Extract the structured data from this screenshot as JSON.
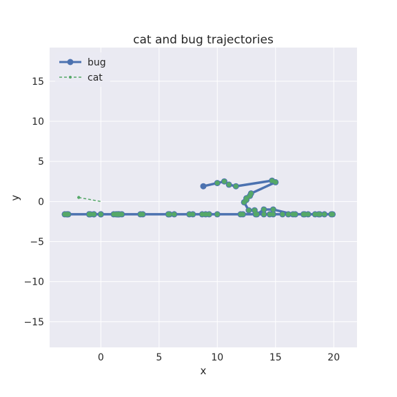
{
  "chart_data": {
    "type": "line",
    "title": "cat and bug trajectories",
    "xlabel": "x",
    "ylabel": "y",
    "xlim": [
      -4.4,
      22.0
    ],
    "ylim": [
      -18.2,
      19.2
    ],
    "xticks": [
      0,
      5,
      10,
      15,
      20
    ],
    "yticks": [
      -15,
      -10,
      -5,
      0,
      5,
      10,
      15
    ],
    "grid": true,
    "legend_position": "top-left",
    "colors": {
      "bug": "#4c72b0",
      "cat": "#55a868",
      "plot_bg": "#eaeaf2",
      "grid": "#ffffff"
    },
    "series": [
      {
        "name": "bug",
        "style": "solid line with circle markers",
        "x": [
          8.8,
          10.0,
          10.6,
          11.0,
          11.6,
          14.7,
          15.0,
          12.9,
          12.8,
          12.5,
          12.5,
          12.3,
          12.7,
          13.2,
          13.4,
          14.0,
          14.8,
          16.5,
          17.4,
          17.8,
          18.7,
          18.8,
          19.8,
          19.9,
          19.2,
          18.4,
          17.5,
          16.7,
          16.1,
          15.6,
          14.8,
          14.5,
          14.0,
          13.3,
          12.2,
          12.0,
          10.0,
          9.3,
          9.0,
          8.7,
          7.9,
          7.6,
          6.3,
          5.9,
          5.8,
          5.8,
          3.6,
          3.4,
          1.5,
          1.1,
          -0.6,
          -0.9,
          -1.0,
          -2.8,
          -2.9,
          -3.1,
          -2.9,
          -1.0,
          -0.6,
          1.6,
          1.5,
          1.5,
          1.8,
          1.3,
          1.5,
          1.4,
          0.0,
          0.0
        ],
        "y": [
          1.9,
          2.3,
          2.5,
          2.1,
          1.9,
          2.6,
          2.4,
          1.0,
          0.7,
          0.4,
          0.2,
          -0.1,
          -1.1,
          -1.1,
          -1.6,
          -1.0,
          -1.0,
          -1.6,
          -1.6,
          -1.6,
          -1.6,
          -1.6,
          -1.6,
          -1.6,
          -1.6,
          -1.6,
          -1.6,
          -1.6,
          -1.6,
          -1.6,
          -1.6,
          -1.6,
          -1.6,
          -1.6,
          -1.6,
          -1.6,
          -1.6,
          -1.6,
          -1.6,
          -1.6,
          -1.6,
          -1.6,
          -1.6,
          -1.6,
          -1.6,
          -1.6,
          -1.6,
          -1.6,
          -1.6,
          -1.6,
          -1.6,
          -1.6,
          -1.6,
          -1.6,
          -1.6,
          -1.6,
          -1.6,
          -1.6,
          -1.6,
          -1.6,
          -1.6,
          -1.6,
          -1.6,
          -1.6,
          -1.6,
          -1.6,
          -1.6,
          -1.6
        ]
      },
      {
        "name": "cat",
        "style": "dashed line with small markers",
        "x": [
          -1.9,
          0.0
        ],
        "y": [
          0.5,
          0.0
        ]
      }
    ]
  }
}
